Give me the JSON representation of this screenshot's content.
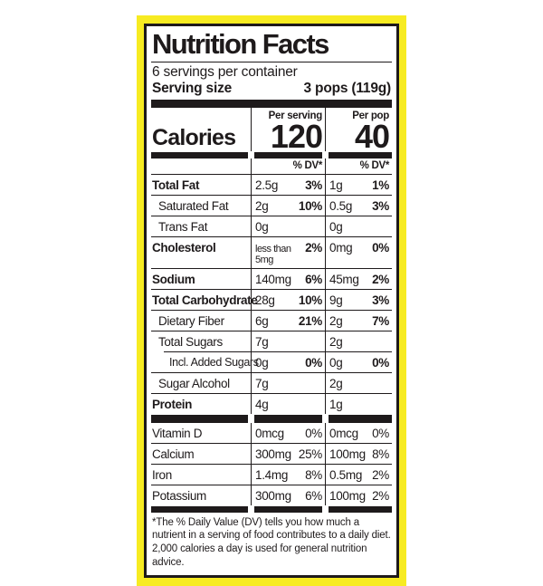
{
  "colors": {
    "frame_yellow": "#f7eb22",
    "ink": "#1e1a1b",
    "paper": "#ffffff"
  },
  "label": {
    "title": "Nutrition Facts",
    "servings_per_container": "6 servings per container",
    "serving_size": {
      "label": "Serving size",
      "value": "3 pops (119g)"
    },
    "calories": {
      "label": "Calories",
      "per_serving": {
        "header": "Per serving",
        "value": "120",
        "dv_header": "% DV*"
      },
      "per_pop": {
        "header": "Per pop",
        "value": "40",
        "dv_header": "% DV*"
      }
    },
    "nutrients": [
      {
        "name": "Total Fat",
        "ps_amt": "2.5g",
        "ps_dv": "3%",
        "pp_amt": "1g",
        "pp_dv": "1%"
      },
      {
        "name": "Saturated Fat",
        "ps_amt": "2g",
        "ps_dv": "10%",
        "pp_amt": "0.5g",
        "pp_dv": "3%"
      },
      {
        "name": "Trans Fat",
        "ps_amt": "0g",
        "ps_dv": "",
        "pp_amt": "0g",
        "pp_dv": ""
      },
      {
        "name": "Cholesterol",
        "ps_amt": "less than 5mg",
        "ps_dv": "2%",
        "pp_amt": "0mg",
        "pp_dv": "0%"
      },
      {
        "name": "Sodium",
        "ps_amt": "140mg",
        "ps_dv": "6%",
        "pp_amt": "45mg",
        "pp_dv": "2%"
      },
      {
        "name": "Total Carbohydrate",
        "ps_amt": "28g",
        "ps_dv": "10%",
        "pp_amt": "9g",
        "pp_dv": "3%"
      },
      {
        "name": "Dietary Fiber",
        "ps_amt": "6g",
        "ps_dv": "21%",
        "pp_amt": "2g",
        "pp_dv": "7%"
      },
      {
        "name": "Total Sugars",
        "ps_amt": "7g",
        "ps_dv": "",
        "pp_amt": "2g",
        "pp_dv": ""
      },
      {
        "name": "Incl. Added Sugars",
        "ps_amt": "0g",
        "ps_dv": "0%",
        "pp_amt": "0g",
        "pp_dv": "0%"
      },
      {
        "name": "Sugar Alcohol",
        "ps_amt": "7g",
        "ps_dv": "",
        "pp_amt": "2g",
        "pp_dv": ""
      },
      {
        "name": "Protein",
        "ps_amt": "4g",
        "ps_dv": "",
        "pp_amt": "1g",
        "pp_dv": ""
      }
    ],
    "vitamins": [
      {
        "name": "Vitamin D",
        "ps_amt": "0mcg",
        "ps_dv": "0%",
        "pp_amt": "0mcg",
        "pp_dv": "0%"
      },
      {
        "name": "Calcium",
        "ps_amt": "300mg",
        "ps_dv": "25%",
        "pp_amt": "100mg",
        "pp_dv": "8%"
      },
      {
        "name": "Iron",
        "ps_amt": "1.4mg",
        "ps_dv": "8%",
        "pp_amt": "0.5mg",
        "pp_dv": "2%"
      },
      {
        "name": "Potassium",
        "ps_amt": "300mg",
        "ps_dv": "6%",
        "pp_amt": "100mg",
        "pp_dv": "2%"
      }
    ],
    "footnote": "*The % Daily Value (DV) tells you how much a nutrient in a serving of food contributes to a daily diet. 2,000 calories a day is used for general nutrition advice."
  }
}
